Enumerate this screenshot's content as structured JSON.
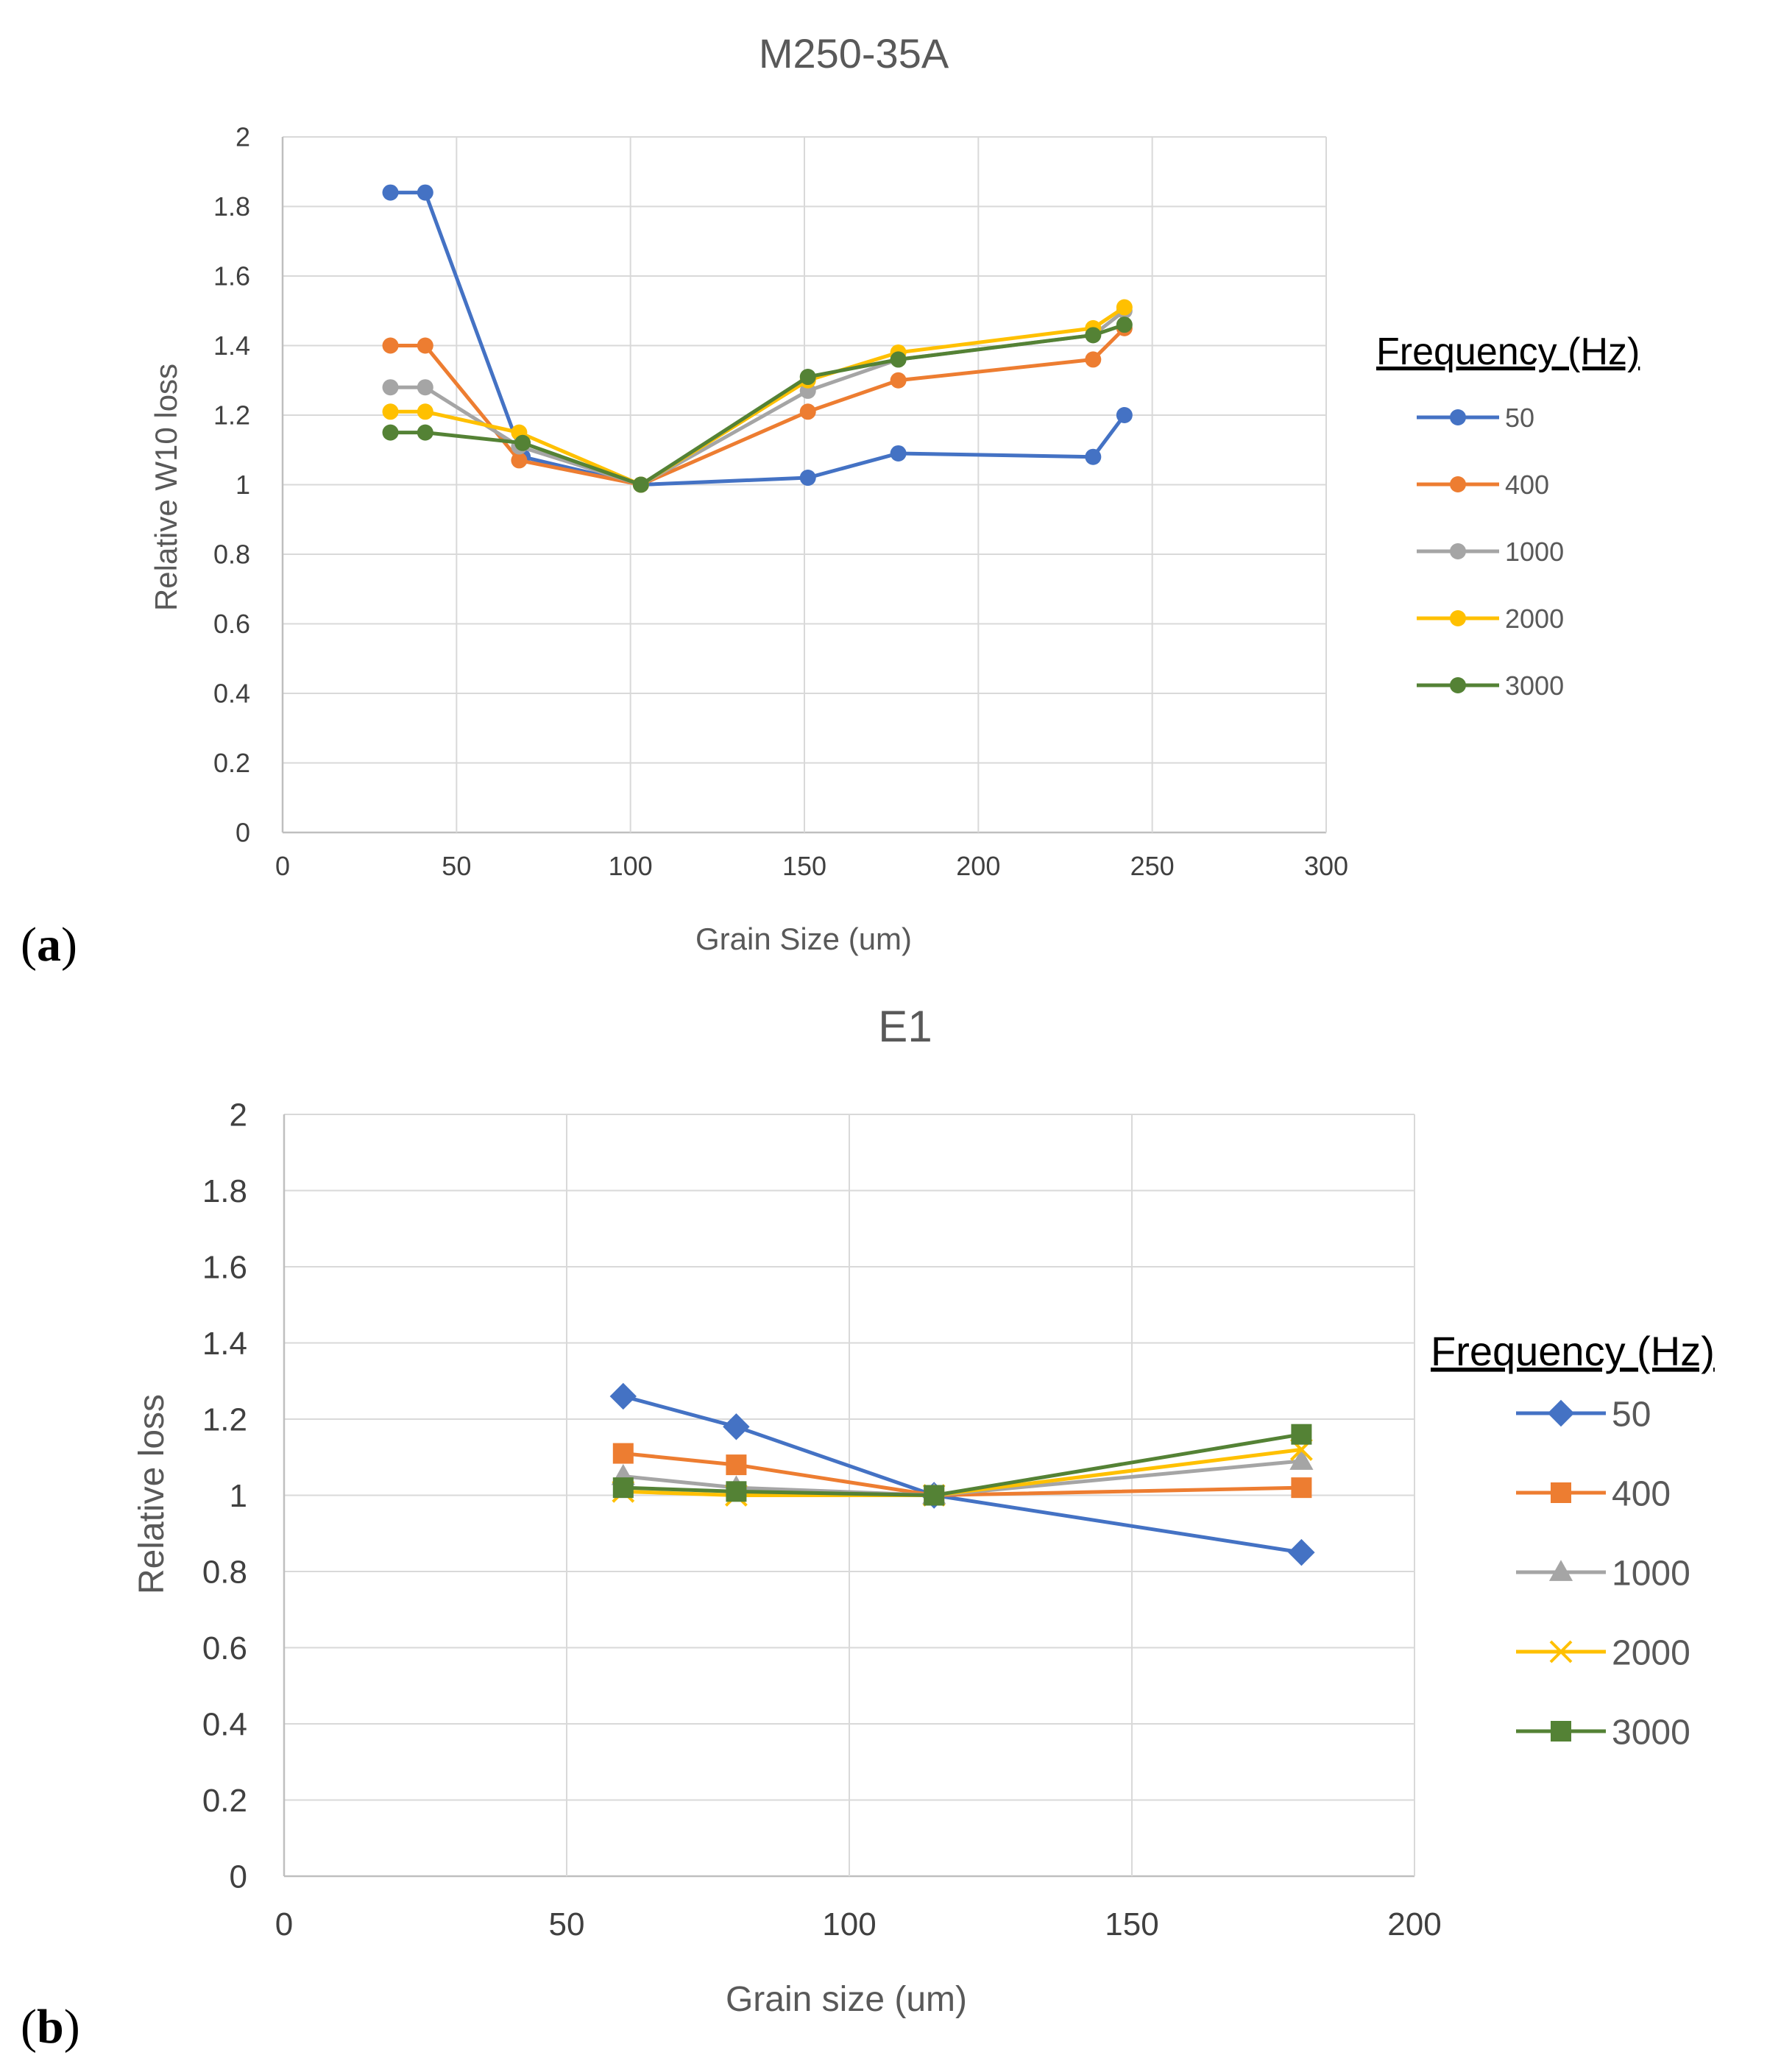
{
  "panels": [
    {
      "label_open": "(",
      "label_letter": "a",
      "label_close": ")"
    },
    {
      "label_open": "(",
      "label_letter": "b",
      "label_close": ")"
    }
  ],
  "chart_data": [
    {
      "type": "line",
      "title": "M250-35A",
      "xlabel": "Grain Size (um)",
      "ylabel": "Relative W10 loss",
      "xlim": [
        0,
        300
      ],
      "ylim": [
        0,
        2
      ],
      "xticks": [
        0,
        50,
        100,
        150,
        200,
        250,
        300
      ],
      "yticks": [
        0,
        0.2,
        0.4,
        0.6,
        0.8,
        1,
        1.2,
        1.4,
        1.6,
        1.8,
        2
      ],
      "grid": true,
      "legend_title": "Frequency (Hz)",
      "legend_position": "right",
      "marker": "circle",
      "series": [
        {
          "name": "50",
          "color": "#4472C4",
          "x": [
            31,
            41,
            69,
            103,
            151,
            177,
            233,
            242
          ],
          "y": [
            1.84,
            1.84,
            1.08,
            1.0,
            1.02,
            1.09,
            1.08,
            1.2
          ]
        },
        {
          "name": "400",
          "color": "#ED7D31",
          "x": [
            31,
            41,
            68,
            103,
            151,
            177,
            233,
            242
          ],
          "y": [
            1.4,
            1.4,
            1.07,
            1.0,
            1.21,
            1.3,
            1.36,
            1.45
          ]
        },
        {
          "name": "1000",
          "color": "#A5A5A5",
          "x": [
            31,
            41,
            68,
            103,
            151,
            177,
            233,
            242
          ],
          "y": [
            1.28,
            1.28,
            1.11,
            1.0,
            1.27,
            1.36,
            1.43,
            1.5
          ]
        },
        {
          "name": "2000",
          "color": "#FFC000",
          "x": [
            31,
            41,
            68,
            103,
            151,
            177,
            233,
            242
          ],
          "y": [
            1.21,
            1.21,
            1.15,
            1.0,
            1.3,
            1.38,
            1.45,
            1.51
          ]
        },
        {
          "name": "3000",
          "color": "#548235",
          "x": [
            31,
            41,
            69,
            103,
            151,
            177,
            233,
            242
          ],
          "y": [
            1.15,
            1.15,
            1.12,
            1.0,
            1.31,
            1.36,
            1.43,
            1.46
          ]
        }
      ]
    },
    {
      "type": "line",
      "title": "E1",
      "xlabel": "Grain size (um)",
      "ylabel": "Relative loss",
      "xlim": [
        0,
        200
      ],
      "ylim": [
        0,
        2
      ],
      "xticks": [
        0,
        50,
        100,
        150,
        200
      ],
      "yticks": [
        0,
        0.2,
        0.4,
        0.6,
        0.8,
        1,
        1.2,
        1.4,
        1.6,
        1.8,
        2
      ],
      "grid": true,
      "legend_title": "Frequency (Hz)",
      "legend_position": "right",
      "series": [
        {
          "name": "50",
          "color": "#4472C4",
          "marker": "diamond",
          "x": [
            60,
            80,
            115,
            180
          ],
          "y": [
            1.26,
            1.18,
            1.0,
            0.85
          ]
        },
        {
          "name": "400",
          "color": "#ED7D31",
          "marker": "square",
          "x": [
            60,
            80,
            115,
            180
          ],
          "y": [
            1.11,
            1.08,
            1.0,
            1.02
          ]
        },
        {
          "name": "1000",
          "color": "#A5A5A5",
          "marker": "triangle",
          "x": [
            60,
            80,
            115,
            180
          ],
          "y": [
            1.05,
            1.02,
            1.0,
            1.09
          ]
        },
        {
          "name": "2000",
          "color": "#FFC000",
          "marker": "x",
          "x": [
            60,
            80,
            115,
            180
          ],
          "y": [
            1.01,
            1.0,
            1.0,
            1.12
          ]
        },
        {
          "name": "3000",
          "color": "#548235",
          "marker": "square",
          "x": [
            60,
            80,
            115,
            180
          ],
          "y": [
            1.02,
            1.01,
            1.0,
            1.16
          ]
        }
      ]
    }
  ]
}
